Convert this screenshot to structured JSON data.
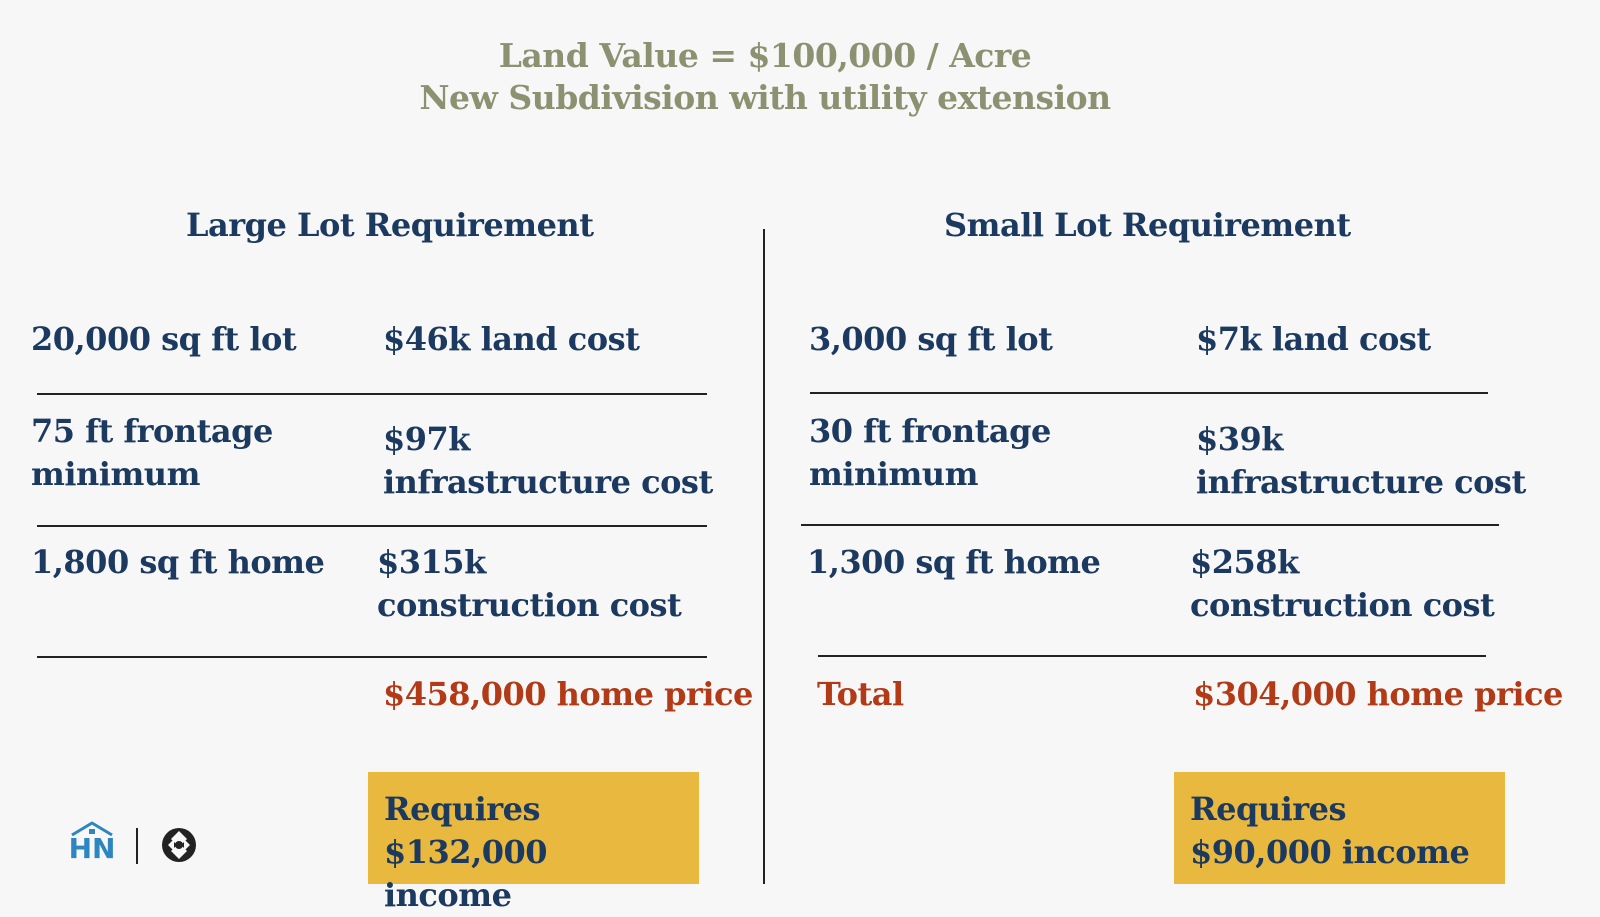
{
  "header": {
    "line1": "Land Value = $100,000 / Acre",
    "line2": "New Subdivision with utility extension"
  },
  "large": {
    "heading": "Large Lot Requirement",
    "rows": [
      {
        "left": "20,000 sq ft lot",
        "right": "$46k land cost"
      },
      {
        "left": "75 ft frontage minimum",
        "right": "$97k infrastructure cost"
      },
      {
        "left": "1,800 sq ft home",
        "right": "$315k construction cost"
      }
    ],
    "total_label": "",
    "total_value": "$458,000 home price",
    "callout": "Requires $132,000 income"
  },
  "small": {
    "heading": "Small Lot Requirement",
    "rows": [
      {
        "left": "3,000 sq ft lot",
        "right": "$7k land cost"
      },
      {
        "left": "30 ft frontage minimum",
        "right": "$39k infrastructure cost"
      },
      {
        "left": "1,300 sq ft home",
        "right": "$258k construction cost"
      }
    ],
    "total_label": "Total",
    "total_value": "$304,000 home price",
    "callout": "Requires $90,000 income"
  },
  "logos": {
    "hn_text": "HN",
    "hn_icon": "house-icon",
    "partner_icon": "partner-logo-icon"
  },
  "colors": {
    "title": "#8c9271",
    "text": "#1c3a60",
    "accent_red": "#b23a16",
    "callout_bg": "#e8b83f",
    "logo_blue": "#2e86c1"
  }
}
